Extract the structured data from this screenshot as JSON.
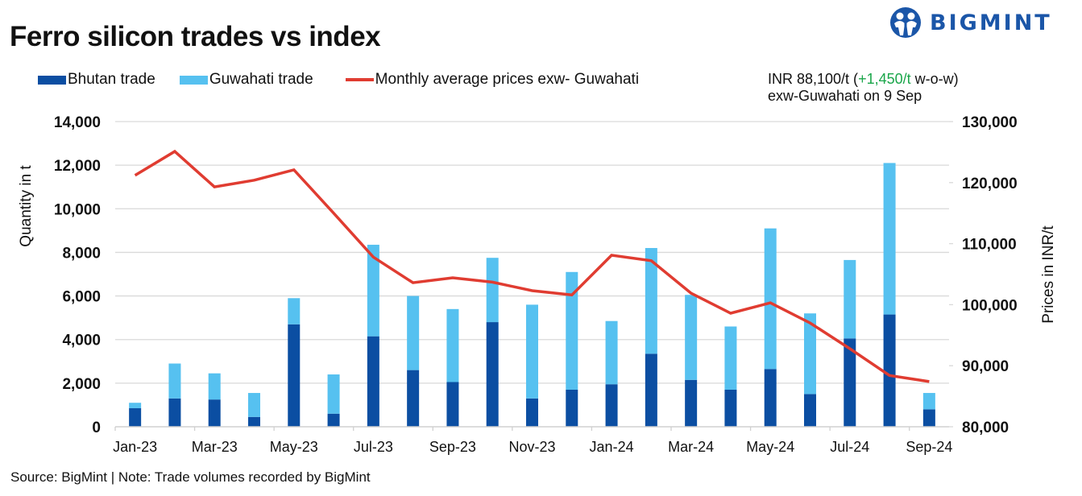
{
  "header": {
    "title": "Ferro silicon trades vs index",
    "logo_text": "BIGMINT",
    "logo_icon": "bigmint-people-logo-icon"
  },
  "legend": {
    "items": [
      {
        "label": "Bhutan trade",
        "type": "bar",
        "color": "#0b4ea2"
      },
      {
        "label": "Guwahati trade",
        "type": "bar",
        "color": "#56c1f0"
      },
      {
        "label": "Monthly average prices exw- Guwahati",
        "type": "line",
        "color": "#e03c31"
      }
    ]
  },
  "annotation": {
    "line1_prefix": "INR 88,100/t (",
    "line1_change": "+1,450/t",
    "line1_suffix": " w-o-w)",
    "line2": "exw-Guwahati on 9 Sep",
    "change_color": "#1aa64a"
  },
  "footer": {
    "source": "Source: BigMint | Note: Trade volumes recorded by BigMint"
  },
  "chart_data": {
    "type": "bar",
    "subtype": "stacked-bar-with-line-secondary-axis",
    "title": "Ferro silicon trades vs index",
    "ylabel": "Quantity in t",
    "y2label": "Prices in INR/t",
    "ylim": [
      0,
      14000
    ],
    "y2lim": [
      80000,
      130000
    ],
    "yticks": [
      "0",
      "2,000",
      "4,000",
      "6,000",
      "8,000",
      "10,000",
      "12,000",
      "14,000"
    ],
    "y2ticks": [
      "80,000",
      "90,000",
      "100,000",
      "110,000",
      "120,000",
      "130,000"
    ],
    "grid": true,
    "legend_position": "top",
    "categories": [
      "Jan-23",
      "Feb-23",
      "Mar-23",
      "Apr-23",
      "May-23",
      "Jun-23",
      "Jul-23",
      "Aug-23",
      "Sep-23",
      "Oct-23",
      "Nov-23",
      "Dec-23",
      "Jan-24",
      "Feb-24",
      "Mar-24",
      "Apr-24",
      "May-24",
      "Jun-24",
      "Jul-24",
      "Aug-24",
      "Sep-24"
    ],
    "xtick_labels": [
      "Jan-23",
      "Mar-23",
      "May-23",
      "Jul-23",
      "Sep-23",
      "Nov-23",
      "Jan-24",
      "Mar-24",
      "May-24",
      "Jul-24",
      "Sep-24"
    ],
    "series": [
      {
        "name": "Bhutan trade",
        "type": "bar",
        "axis": "left",
        "color": "#0b4ea2",
        "values": [
          850,
          1300,
          1250,
          450,
          4700,
          600,
          4150,
          2600,
          2050,
          4800,
          1300,
          1700,
          1950,
          3350,
          2150,
          1700,
          2650,
          1500,
          4050,
          5150,
          800
        ]
      },
      {
        "name": "Guwahati trade",
        "type": "bar",
        "axis": "left",
        "color": "#56c1f0",
        "values": [
          250,
          1600,
          1200,
          1100,
          1200,
          1800,
          4200,
          3400,
          3350,
          2950,
          4300,
          5400,
          2900,
          4850,
          3900,
          2900,
          6450,
          3700,
          3600,
          6950,
          750
        ]
      },
      {
        "name": "Monthly average prices exw- Guwahati",
        "type": "line",
        "axis": "right",
        "color": "#e03c31",
        "values": [
          121200,
          125100,
          119300,
          120400,
          122100,
          115000,
          107800,
          103600,
          104400,
          103700,
          102300,
          101600,
          108100,
          107200,
          101900,
          98600,
          100300,
          97000,
          92800,
          88400,
          87400
        ]
      }
    ]
  }
}
